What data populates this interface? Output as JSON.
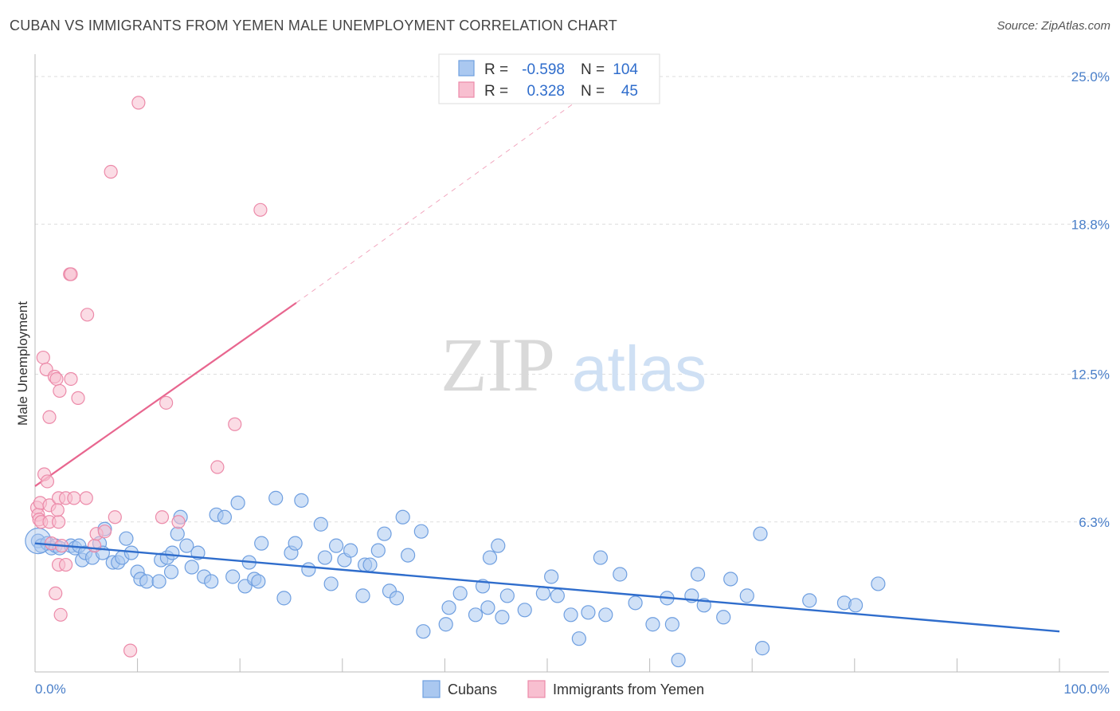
{
  "title": "CUBAN VS IMMIGRANTS FROM YEMEN MALE UNEMPLOYMENT CORRELATION CHART",
  "source": "Source: ZipAtlas.com",
  "watermark": {
    "zip": "ZIP",
    "atlas": "atlas"
  },
  "legend_top": {
    "row1": {
      "r_label": "R =",
      "r_value": "-0.598",
      "n_label": "N =",
      "n_value": "104"
    },
    "row2": {
      "r_label": "R =",
      "r_value": "0.328",
      "n_label": "N =",
      "n_value": "45"
    }
  },
  "legend_bottom": {
    "cubans": "Cubans",
    "yemen": "Immigrants from Yemen"
  },
  "colors": {
    "cubans_fill": "#aac8f0",
    "cubans_stroke": "#6f9fe0",
    "cubans_line": "#2f6dcc",
    "yemen_fill": "#f8bfd0",
    "yemen_stroke": "#ec8aa9",
    "yemen_line": "#e8668f"
  },
  "chart_data": {
    "type": "scatter",
    "title": "CUBAN VS IMMIGRANTS FROM YEMEN MALE UNEMPLOYMENT CORRELATION CHART",
    "xlabel": "",
    "ylabel": "Male Unemployment",
    "xlim": [
      0,
      100
    ],
    "ylim": [
      0,
      25.0
    ],
    "x_tick_labels": [
      "0.0%",
      "100.0%"
    ],
    "y_ticks": [
      6.3,
      12.5,
      18.8,
      25.0
    ],
    "y_tick_labels": [
      "6.3%",
      "12.5%",
      "18.8%",
      "25.0%"
    ],
    "grid": "horizontal dashed",
    "legend": "top-center",
    "series": [
      {
        "name": "Cubans",
        "points": [
          [
            0.3,
            5.5
          ],
          [
            0.6,
            5.3
          ],
          [
            1.2,
            5.4
          ],
          [
            1.6,
            5.2
          ],
          [
            2.0,
            5.3
          ],
          [
            2.4,
            5.2
          ],
          [
            3.5,
            5.3
          ],
          [
            3.9,
            5.2
          ],
          [
            4.3,
            5.3
          ],
          [
            4.6,
            4.7
          ],
          [
            4.9,
            5.0
          ],
          [
            5.6,
            4.8
          ],
          [
            6.3,
            5.4
          ],
          [
            6.6,
            5.0
          ],
          [
            6.8,
            6.0
          ],
          [
            7.6,
            4.6
          ],
          [
            8.1,
            4.6
          ],
          [
            8.5,
            4.8
          ],
          [
            8.9,
            5.6
          ],
          [
            9.4,
            5.0
          ],
          [
            10.0,
            4.2
          ],
          [
            10.3,
            3.9
          ],
          [
            10.9,
            3.8
          ],
          [
            12.1,
            3.8
          ],
          [
            12.3,
            4.7
          ],
          [
            12.9,
            4.8
          ],
          [
            13.3,
            4.2
          ],
          [
            13.4,
            5.0
          ],
          [
            13.9,
            5.8
          ],
          [
            14.2,
            6.5
          ],
          [
            14.8,
            5.3
          ],
          [
            15.3,
            4.4
          ],
          [
            15.9,
            5.0
          ],
          [
            16.5,
            4.0
          ],
          [
            17.2,
            3.8
          ],
          [
            17.7,
            6.6
          ],
          [
            18.5,
            6.5
          ],
          [
            19.3,
            4.0
          ],
          [
            19.8,
            7.1
          ],
          [
            20.5,
            3.6
          ],
          [
            20.9,
            4.6
          ],
          [
            21.4,
            3.9
          ],
          [
            21.8,
            3.8
          ],
          [
            22.1,
            5.4
          ],
          [
            23.5,
            7.3
          ],
          [
            24.3,
            3.1
          ],
          [
            25.0,
            5.0
          ],
          [
            25.4,
            5.4
          ],
          [
            26.0,
            7.2
          ],
          [
            26.7,
            4.3
          ],
          [
            27.9,
            6.2
          ],
          [
            28.3,
            4.8
          ],
          [
            28.9,
            3.7
          ],
          [
            29.4,
            5.3
          ],
          [
            30.2,
            4.7
          ],
          [
            30.8,
            5.1
          ],
          [
            32.0,
            3.2
          ],
          [
            32.2,
            4.5
          ],
          [
            32.7,
            4.5
          ],
          [
            33.5,
            5.1
          ],
          [
            34.1,
            5.8
          ],
          [
            34.6,
            3.4
          ],
          [
            35.3,
            3.1
          ],
          [
            35.9,
            6.5
          ],
          [
            36.4,
            4.9
          ],
          [
            37.7,
            5.9
          ],
          [
            37.9,
            1.7
          ],
          [
            40.1,
            2.0
          ],
          [
            40.4,
            2.7
          ],
          [
            41.5,
            3.3
          ],
          [
            43.0,
            2.4
          ],
          [
            43.7,
            3.6
          ],
          [
            44.2,
            2.7
          ],
          [
            44.4,
            4.8
          ],
          [
            45.2,
            5.3
          ],
          [
            45.6,
            2.3
          ],
          [
            46.1,
            3.2
          ],
          [
            47.8,
            2.6
          ],
          [
            49.6,
            3.3
          ],
          [
            50.4,
            4.0
          ],
          [
            51.0,
            3.2
          ],
          [
            52.3,
            2.4
          ],
          [
            53.1,
            1.4
          ],
          [
            54.0,
            2.5
          ],
          [
            55.2,
            4.8
          ],
          [
            55.7,
            2.4
          ],
          [
            57.1,
            4.1
          ],
          [
            58.6,
            2.9
          ],
          [
            60.3,
            2.0
          ],
          [
            61.7,
            3.1
          ],
          [
            62.2,
            2.0
          ],
          [
            62.8,
            0.5
          ],
          [
            64.1,
            3.2
          ],
          [
            64.7,
            4.1
          ],
          [
            65.3,
            2.8
          ],
          [
            67.2,
            2.3
          ],
          [
            67.9,
            3.9
          ],
          [
            69.5,
            3.2
          ],
          [
            70.8,
            5.8
          ],
          [
            71.0,
            1.0
          ],
          [
            75.6,
            3.0
          ],
          [
            79.0,
            2.9
          ],
          [
            80.1,
            2.8
          ],
          [
            82.3,
            3.7
          ]
        ],
        "trend": {
          "x0": 0,
          "y0": 5.4,
          "x1": 100,
          "y1": 1.7
        }
      },
      {
        "name": "Immigrants from Yemen",
        "points": [
          [
            0.2,
            6.9
          ],
          [
            0.3,
            6.6
          ],
          [
            0.4,
            6.4
          ],
          [
            0.5,
            7.1
          ],
          [
            0.6,
            6.3
          ],
          [
            0.8,
            13.2
          ],
          [
            0.9,
            8.3
          ],
          [
            1.1,
            12.7
          ],
          [
            1.2,
            8.0
          ],
          [
            1.4,
            6.3
          ],
          [
            1.4,
            7.0
          ],
          [
            1.4,
            10.7
          ],
          [
            1.6,
            5.4
          ],
          [
            1.9,
            12.4
          ],
          [
            2.0,
            3.3
          ],
          [
            2.1,
            12.3
          ],
          [
            2.3,
            6.3
          ],
          [
            2.3,
            7.3
          ],
          [
            2.2,
            6.8
          ],
          [
            2.3,
            4.5
          ],
          [
            2.4,
            11.8
          ],
          [
            2.5,
            2.4
          ],
          [
            3.0,
            7.3
          ],
          [
            3.0,
            4.5
          ],
          [
            3.4,
            16.7
          ],
          [
            3.5,
            16.7
          ],
          [
            3.5,
            12.3
          ],
          [
            3.8,
            7.3
          ],
          [
            4.2,
            11.5
          ],
          [
            5.0,
            7.3
          ],
          [
            5.1,
            15.0
          ],
          [
            5.8,
            5.3
          ],
          [
            6.0,
            5.8
          ],
          [
            6.8,
            5.9
          ],
          [
            7.4,
            21.0
          ],
          [
            7.8,
            6.5
          ],
          [
            9.3,
            0.9
          ],
          [
            10.1,
            23.9
          ],
          [
            12.4,
            6.5
          ],
          [
            12.8,
            11.3
          ],
          [
            14.0,
            6.3
          ],
          [
            17.8,
            8.6
          ],
          [
            19.5,
            10.4
          ],
          [
            22.0,
            19.4
          ],
          [
            2.6,
            5.3
          ]
        ],
        "trend": {
          "x0": 0,
          "y0": 7.8,
          "x1": 25.5,
          "y1": 15.5,
          "extended_x1": 53,
          "extended_y1": 24.0
        }
      }
    ]
  }
}
